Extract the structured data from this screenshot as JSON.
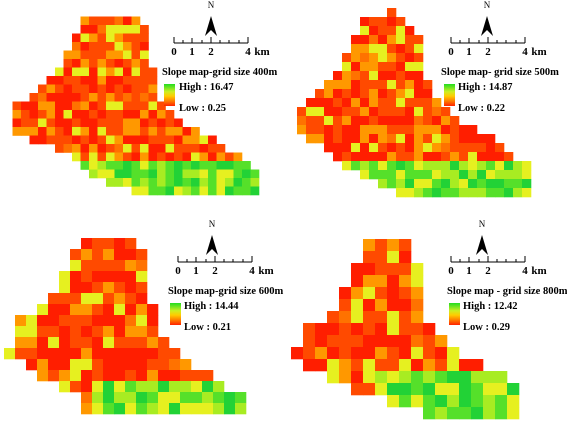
{
  "panels": [
    {
      "title": "Slope map-grid size 400m",
      "high_label": "High : 16.47",
      "low_label": "Low : 0.25",
      "north_label": "N",
      "scale": {
        "ticks": [
          "0",
          "1",
          "2",
          "4"
        ],
        "unit": "km"
      }
    },
    {
      "title": "Slope map- grid size 500m",
      "high_label": "High : 14.87",
      "low_label": "Low : 0.22",
      "north_label": "N",
      "scale": {
        "ticks": [
          "0",
          "1",
          "2",
          "4"
        ],
        "unit": "km"
      }
    },
    {
      "title": "Slope map-grid size 600m",
      "high_label": "High : 14.44",
      "low_label": "Low : 0.21",
      "north_label": "N",
      "scale": {
        "ticks": [
          "0",
          "1",
          "2",
          "4"
        ],
        "unit": "km"
      }
    },
    {
      "title": "Slope map - grid size 800m",
      "high_label": "High : 12.42",
      "low_label": "Low : 0.29",
      "north_label": "N",
      "scale": {
        "ticks": [
          "0",
          "1",
          "2",
          "4"
        ],
        "unit": "km"
      }
    }
  ],
  "legend_colors": {
    "high": "#22dd22",
    "mid": "#ffcc00",
    "low": "#ff2200"
  }
}
